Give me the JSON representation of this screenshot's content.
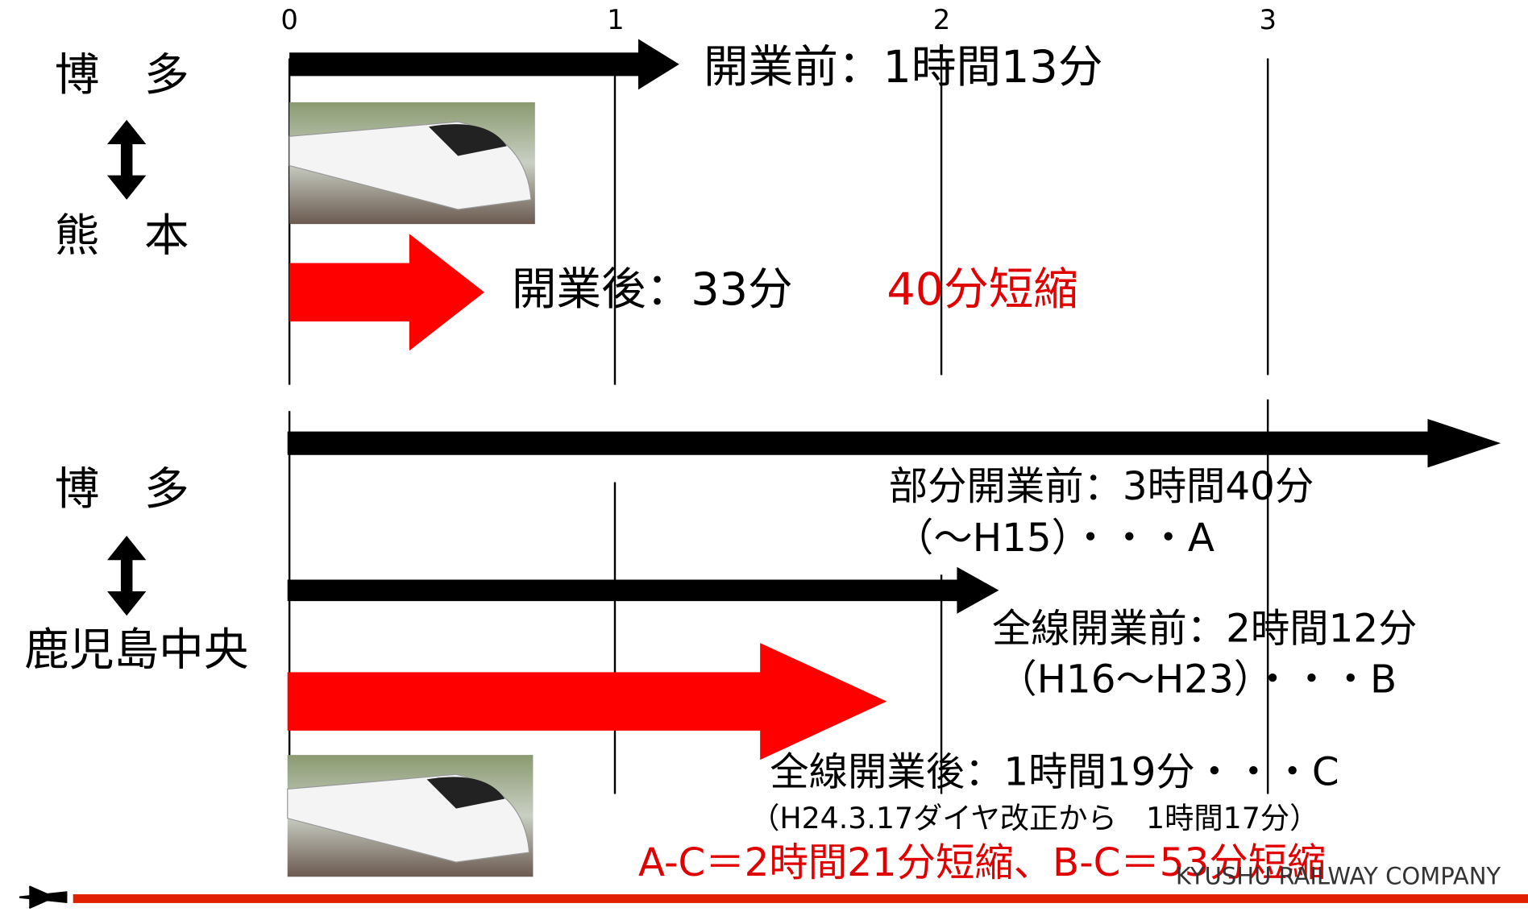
{
  "axis_ticks": [
    0,
    1,
    2,
    3
  ],
  "section1": {
    "from": "博　多",
    "to": "熊　本",
    "before": "開業前：1時間13分",
    "after": "開業後：33分",
    "saving": "40分短縮"
  },
  "section2": {
    "from": "博　多",
    "to": "鹿児島中央",
    "partial_before": "部分開業前：3時間40分",
    "partial_before_note": "（～H15）・・・A",
    "full_before": "全線開業前：2時間12分",
    "full_before_note": "（H16～H23）・・・B",
    "full_after": "全線開業後：1時間19分・・・C",
    "full_after_note": "（H24.3.17ダイヤ改正から　1時間17分）",
    "saving": "A-C＝2時間21分短縮、B-C＝53分短縮"
  },
  "footer": {
    "company": "KYUSHU RAILWAY COMPANY"
  }
}
